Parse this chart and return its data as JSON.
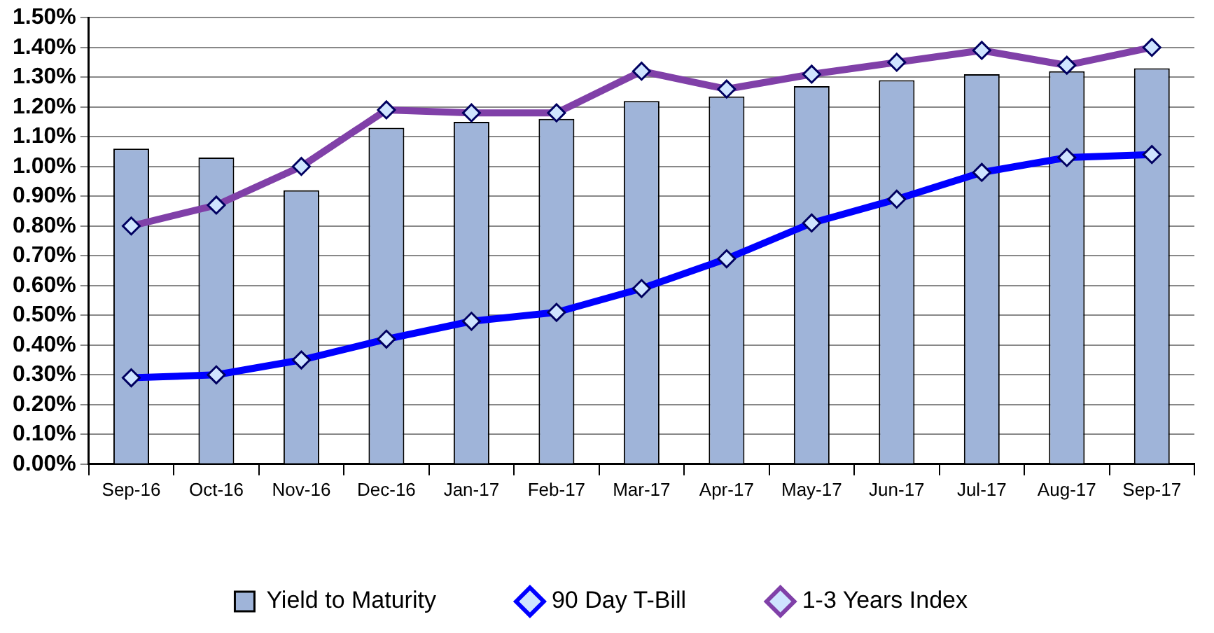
{
  "chart_data": {
    "type": "bar",
    "categories": [
      "Sep-16",
      "Oct-16",
      "Nov-16",
      "Dec-16",
      "Jan-17",
      "Feb-17",
      "Mar-17",
      "Apr-17",
      "May-17",
      "Jun-17",
      "Jul-17",
      "Aug-17",
      "Sep-17"
    ],
    "series": [
      {
        "name": "Yield to Maturity",
        "color": "#9fb4d9",
        "values": [
          1.06,
          1.03,
          0.92,
          1.13,
          1.15,
          1.16,
          1.22,
          1.235,
          1.27,
          1.29,
          1.31,
          1.32,
          1.33
        ]
      },
      {
        "name": "90 Day T-Bill",
        "type": "line",
        "color": "#0000ff",
        "values": [
          0.29,
          0.3,
          0.35,
          0.42,
          0.48,
          0.51,
          0.59,
          0.69,
          0.81,
          0.89,
          0.98,
          1.03,
          1.04
        ]
      },
      {
        "name": "1-3 Years Index",
        "type": "line",
        "color": "#8040a8",
        "values": [
          0.8,
          0.87,
          1.0,
          1.19,
          1.18,
          1.18,
          1.32,
          1.26,
          1.31,
          1.35,
          1.39,
          1.34,
          1.4
        ]
      }
    ],
    "ylim": [
      0,
      1.5
    ],
    "yticks": [
      {
        "value": 0,
        "label": "0.00%"
      },
      {
        "value": 0.1,
        "label": "0.10%"
      },
      {
        "value": 0.2,
        "label": "0.20%"
      },
      {
        "value": 0.3,
        "label": "0.30%"
      },
      {
        "value": 0.4,
        "label": "0.40%"
      },
      {
        "value": 0.5,
        "label": "0.50%"
      },
      {
        "value": 0.6,
        "label": "0.60%"
      },
      {
        "value": 0.7,
        "label": "0.70%"
      },
      {
        "value": 0.8,
        "label": "0.80%"
      },
      {
        "value": 0.9,
        "label": "0.90%"
      },
      {
        "value": 1.0,
        "label": "1.00%"
      },
      {
        "value": 1.1,
        "label": "1.10%"
      },
      {
        "value": 1.2,
        "label": "1.20%"
      },
      {
        "value": 1.3,
        "label": "1.30%"
      },
      {
        "value": 1.4,
        "label": "1.40%"
      },
      {
        "value": 1.5,
        "label": "1.50%"
      }
    ],
    "grid": "y",
    "legend": "bottom",
    "marker": "diamond"
  }
}
